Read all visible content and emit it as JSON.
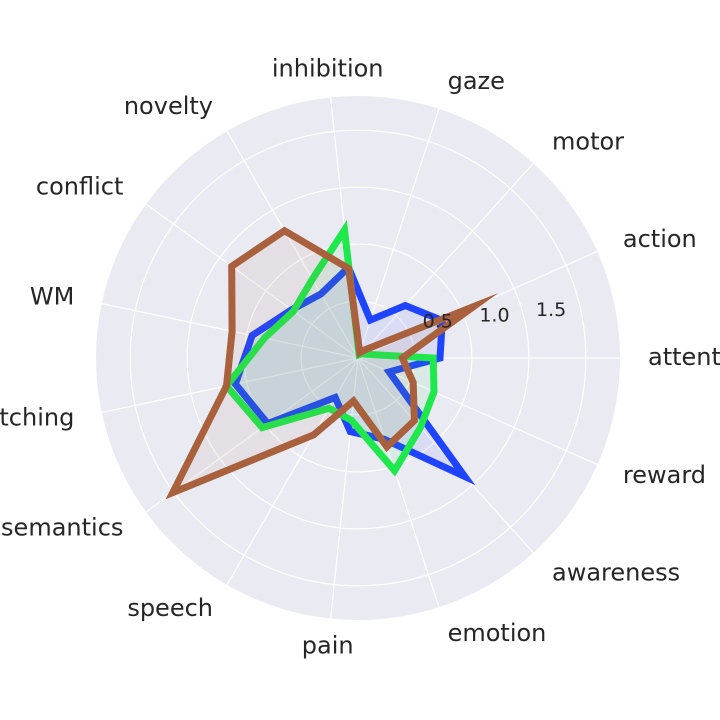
{
  "chart_data": {
    "type": "radar",
    "categories": [
      "attention",
      "action",
      "motor",
      "gaze",
      "inhibition",
      "novelty",
      "conflict",
      "WM",
      "switching",
      "semantics",
      "speech",
      "pain",
      "emotion",
      "awareness",
      "reward"
    ],
    "radial_ticks": [
      0.5,
      1.0,
      1.5
    ],
    "radial_tick_labels": [
      "0.5",
      "1.0",
      "1.5"
    ],
    "rlim": [
      0,
      2.3
    ],
    "grid": true,
    "colors": {
      "background": "#eaeaf2",
      "grid": "#ffffff",
      "text": "#262626"
    },
    "series": [
      {
        "color": "#1f44ff",
        "fill_opacity": 0.08,
        "values": [
          0.72,
          0.81,
          0.62,
          0.35,
          0.8,
          0.65,
          0.72,
          0.95,
          1.1,
          0.98,
          0.4,
          0.65,
          0.75,
          1.4,
          0.3
        ]
      },
      {
        "color": "#1fe84d",
        "fill_opacity": 0.08,
        "values": [
          0.66,
          0.08,
          0.05,
          0.03,
          1.13,
          0.8,
          0.7,
          0.84,
          1.18,
          1.04,
          0.51,
          0.55,
          1.04,
          0.82,
          0.73
        ]
      },
      {
        "color": "#a9603c",
        "fill_opacity": 0.08,
        "values": [
          0.39,
          1.11,
          0.1,
          0.05,
          0.79,
          1.29,
          1.37,
          1.13,
          1.18,
          2.01,
          0.78,
          0.38,
          0.82,
          0.74,
          0.53
        ]
      }
    ]
  }
}
